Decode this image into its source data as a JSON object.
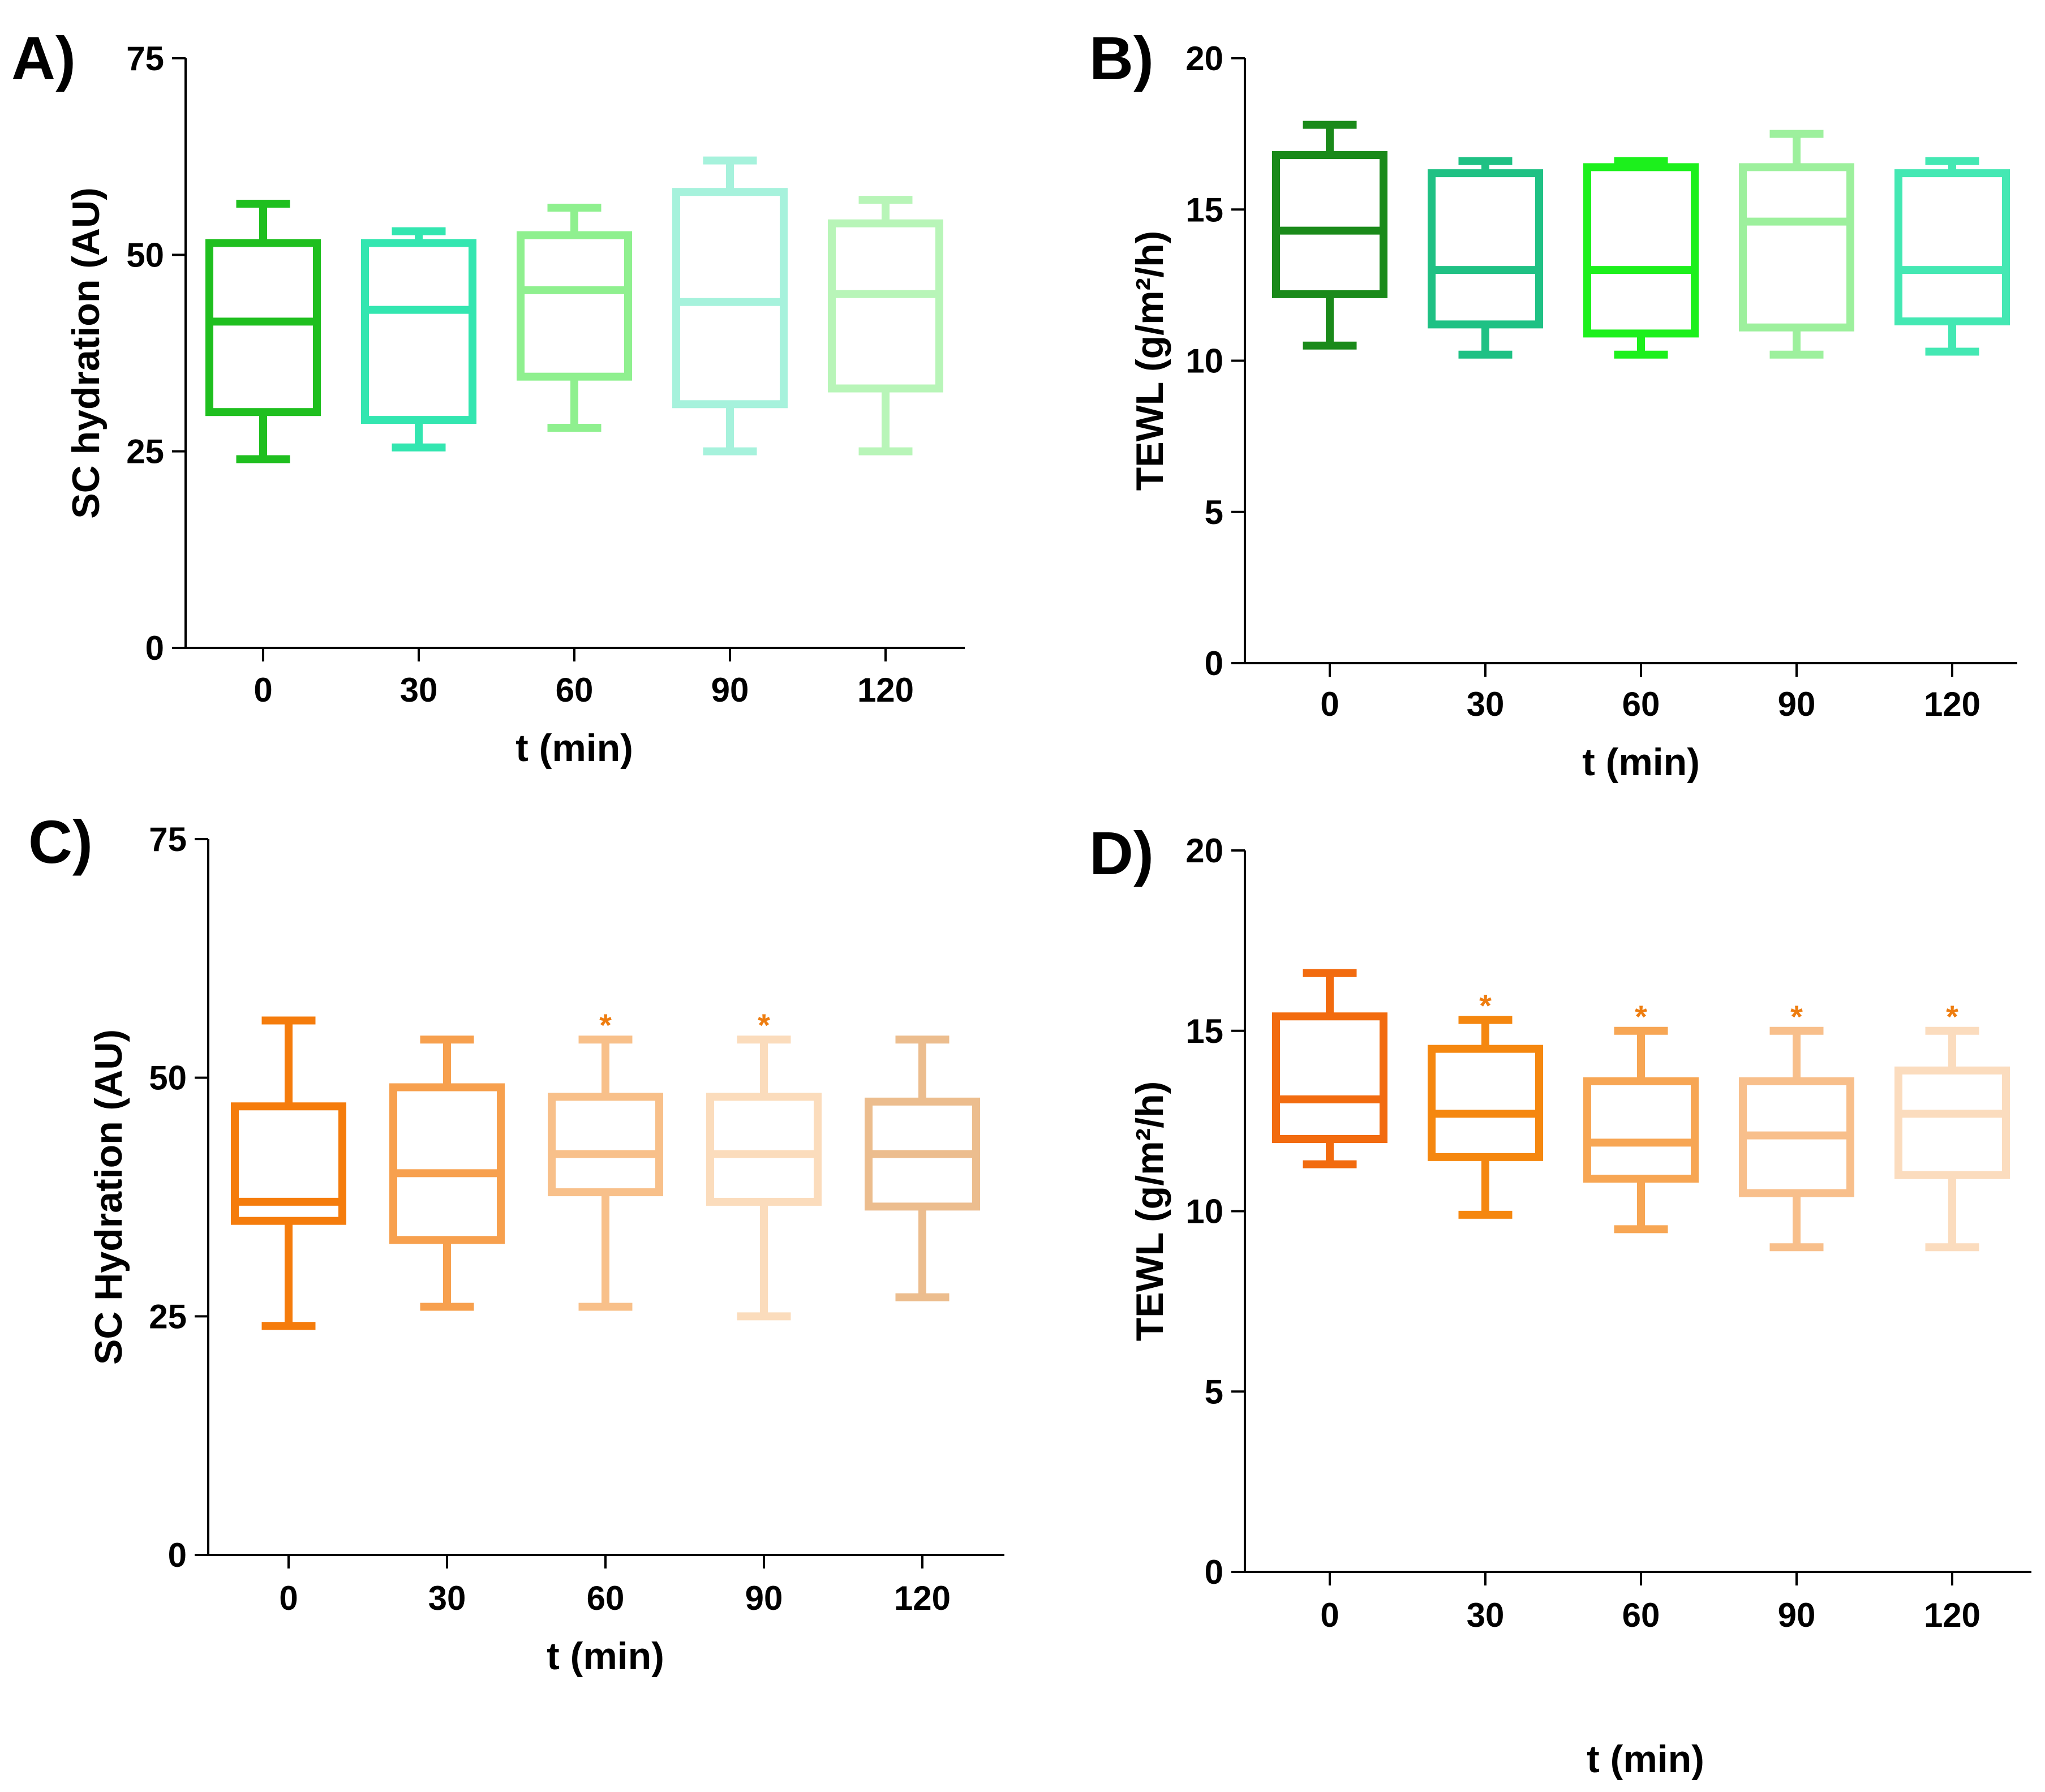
{
  "chart_data": [
    {
      "id": "A",
      "type": "box",
      "panel_label": "A)",
      "xlabel": "t (min)",
      "ylabel": "SC hydration (AU)",
      "ylim": [
        0,
        75
      ],
      "yticks": [
        "0",
        "25",
        "50",
        "75"
      ],
      "categories": [
        "0",
        "30",
        "60",
        "90",
        "120"
      ],
      "boxes": [
        {
          "min": 24,
          "q1": 30,
          "median": 41.5,
          "q3": 51.5,
          "max": 56.5,
          "color": "#1fbf1f",
          "sig": ""
        },
        {
          "min": 25.5,
          "q1": 29,
          "median": 43,
          "q3": 51.5,
          "max": 53,
          "color": "#33e6b0",
          "sig": ""
        },
        {
          "min": 28,
          "q1": 34.5,
          "median": 45.5,
          "q3": 52.5,
          "max": 56,
          "color": "#8ff08f",
          "sig": ""
        },
        {
          "min": 25,
          "q1": 31,
          "median": 44,
          "q3": 58,
          "max": 62,
          "color": "#a6f2dc",
          "sig": ""
        },
        {
          "min": 25,
          "q1": 33,
          "median": 45,
          "q3": 54,
          "max": 57,
          "color": "#b8f5b8",
          "sig": ""
        }
      ]
    },
    {
      "id": "B",
      "type": "box",
      "panel_label": "B)",
      "xlabel": "t (min)",
      "ylabel": "TEWL (g/m²/h)",
      "ylim": [
        0,
        20
      ],
      "yticks": [
        "0",
        "5",
        "10",
        "15",
        "20"
      ],
      "categories": [
        "0",
        "30",
        "60",
        "90",
        "120"
      ],
      "boxes": [
        {
          "min": 10.5,
          "q1": 12.2,
          "median": 14.3,
          "q3": 16.8,
          "max": 17.8,
          "color": "#1a8a1a",
          "sig": ""
        },
        {
          "min": 10.2,
          "q1": 11.2,
          "median": 13,
          "q3": 16.2,
          "max": 16.6,
          "color": "#1fc184",
          "sig": ""
        },
        {
          "min": 10.2,
          "q1": 10.9,
          "median": 13,
          "q3": 16.4,
          "max": 16.6,
          "color": "#1cf01c",
          "sig": ""
        },
        {
          "min": 10.2,
          "q1": 11.1,
          "median": 14.6,
          "q3": 16.4,
          "max": 17.5,
          "color": "#9df09d",
          "sig": ""
        },
        {
          "min": 10.3,
          "q1": 11.3,
          "median": 13,
          "q3": 16.2,
          "max": 16.6,
          "color": "#44e8b3",
          "sig": ""
        }
      ]
    },
    {
      "id": "C",
      "type": "box",
      "panel_label": "C)",
      "xlabel": "t (min)",
      "ylabel": "SC Hydration (AU)",
      "ylim": [
        0,
        75
      ],
      "yticks": [
        "0",
        "25",
        "50",
        "75"
      ],
      "categories": [
        "0",
        "30",
        "60",
        "90",
        "120"
      ],
      "boxes": [
        {
          "min": 24,
          "q1": 35,
          "median": 37,
          "q3": 47,
          "max": 56,
          "color": "#f57c0c",
          "sig": ""
        },
        {
          "min": 26,
          "q1": 33,
          "median": 40,
          "q3": 49,
          "max": 54,
          "color": "#f7a04e",
          "sig": ""
        },
        {
          "min": 26,
          "q1": 38,
          "median": 42,
          "q3": 48,
          "max": 54,
          "color": "#f8c08a",
          "sig": "*"
        },
        {
          "min": 25,
          "q1": 37,
          "median": 42,
          "q3": 48,
          "max": 54,
          "color": "#fbdcbc",
          "sig": "*"
        },
        {
          "min": 27,
          "q1": 36.5,
          "median": 42,
          "q3": 47.5,
          "max": 54,
          "color": "#ecbd8e",
          "sig": ""
        }
      ]
    },
    {
      "id": "D",
      "type": "box",
      "panel_label": "D)",
      "xlabel": "t (min)",
      "ylabel": "TEWL (g/m²/h)",
      "ylim": [
        0,
        20
      ],
      "yticks": [
        "0",
        "5",
        "10",
        "15",
        "20"
      ],
      "categories": [
        "0",
        "30",
        "60",
        "90",
        "120"
      ],
      "boxes": [
        {
          "min": 11.3,
          "q1": 12,
          "median": 13.1,
          "q3": 15.4,
          "max": 16.6,
          "color": "#f26b0f",
          "sig": ""
        },
        {
          "min": 9.9,
          "q1": 11.5,
          "median": 12.7,
          "q3": 14.5,
          "max": 15.3,
          "color": "#f5870f",
          "sig": "*"
        },
        {
          "min": 9.5,
          "q1": 10.9,
          "median": 11.9,
          "q3": 13.6,
          "max": 15,
          "color": "#f7a654",
          "sig": "*"
        },
        {
          "min": 9,
          "q1": 10.5,
          "median": 12.1,
          "q3": 13.6,
          "max": 15,
          "color": "#f8bf8b",
          "sig": "*"
        },
        {
          "min": 9,
          "q1": 11,
          "median": 12.7,
          "q3": 13.9,
          "max": 15,
          "color": "#fbdcbe",
          "sig": "*"
        }
      ]
    }
  ],
  "extra_xlabel": "t (min)"
}
